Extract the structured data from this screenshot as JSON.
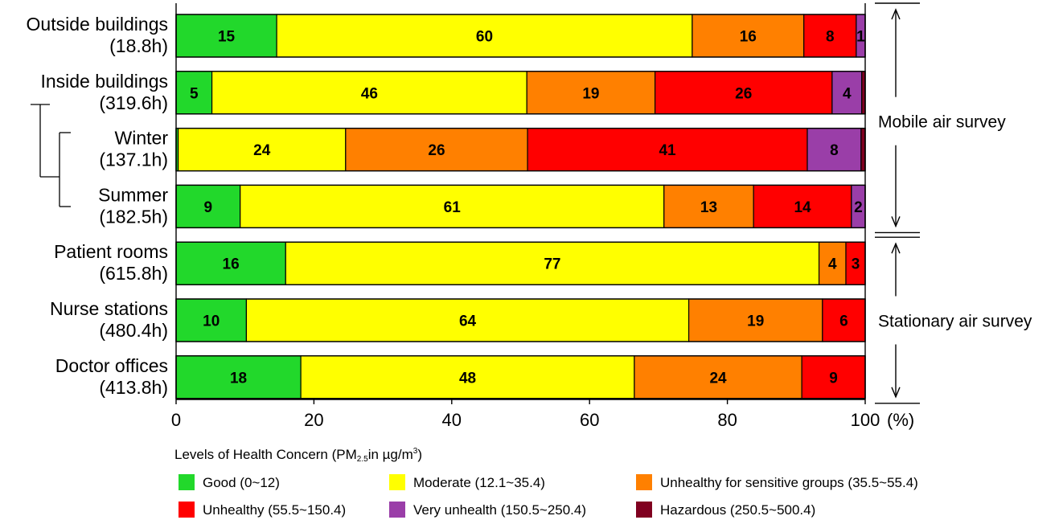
{
  "chart_data": {
    "type": "bar",
    "orientation": "horizontal",
    "stacked": true,
    "categories": [
      {
        "name": "Outside buildings",
        "hours": "(18.8h)"
      },
      {
        "name": "Inside buildings",
        "hours": "(319.6h)"
      },
      {
        "name": "Winter",
        "hours": "(137.1h)"
      },
      {
        "name": "Summer",
        "hours": "(182.5h)"
      },
      {
        "name": "Patient rooms",
        "hours": "(615.8h)"
      },
      {
        "name": "Nurse stations",
        "hours": "(480.4h)"
      },
      {
        "name": "Doctor offices",
        "hours": "(413.8h)"
      }
    ],
    "series": [
      {
        "name": "Good (0~12)",
        "color": "#22d82b",
        "values": [
          14.6,
          5.2,
          0.3,
          9.3,
          15.9,
          10.2,
          18.1
        ],
        "labels": [
          "15",
          "5",
          "",
          "9",
          "16",
          "10",
          "18"
        ]
      },
      {
        "name": "Moderate (12.1~35.4)",
        "color": "#ffff00",
        "values": [
          60.3,
          45.7,
          24.3,
          61.5,
          77.4,
          64.2,
          48.4
        ],
        "labels": [
          "60",
          "46",
          "24",
          "61",
          "77",
          "64",
          "48"
        ]
      },
      {
        "name": "Unhealthy for sensitive groups (35.5~55.4)",
        "color": "#ff8000",
        "values": [
          16.2,
          18.6,
          26.4,
          13.0,
          3.9,
          19.4,
          24.3
        ],
        "labels": [
          "16",
          "19",
          "26",
          "13",
          "4",
          "19",
          "24"
        ]
      },
      {
        "name": "Unhealthy (55.5~150.4)",
        "color": "#ff0000",
        "values": [
          7.6,
          25.7,
          40.6,
          14.2,
          2.8,
          6.2,
          9.2
        ],
        "labels": [
          "8",
          "26",
          "41",
          "14",
          "3",
          "6",
          "9"
        ]
      },
      {
        "name": "Very unhealth (150.5~250.4)",
        "color": "#9a3ea8",
        "values": [
          1.3,
          4.3,
          7.8,
          2.0,
          0.0,
          0.0,
          0.0
        ],
        "labels": [
          "1",
          "4",
          "8",
          "2",
          "",
          "",
          ""
        ]
      },
      {
        "name": "Hazardous (250.5~500.4)",
        "color": "#800020",
        "values": [
          0.0,
          0.5,
          0.6,
          0.0,
          0.0,
          0.0,
          0.0
        ],
        "labels": [
          "",
          "",
          "",
          "",
          "",
          "",
          ""
        ]
      }
    ],
    "xlim": [
      0,
      100
    ],
    "xticks": [
      0,
      20,
      40,
      60,
      80,
      100
    ],
    "xunit": "(%)",
    "groups": [
      {
        "label": "Mobile air survey",
        "from": 0,
        "to": 3
      },
      {
        "label": "Stationary air survey",
        "from": 4,
        "to": 6
      }
    ],
    "legend_title": {
      "prefix": "Levels of Health Concern (PM",
      "subscript": "2.5",
      "middle": "in µg/m",
      "superscript": "3",
      "suffix": ")"
    },
    "legend_placement": "bottom"
  }
}
